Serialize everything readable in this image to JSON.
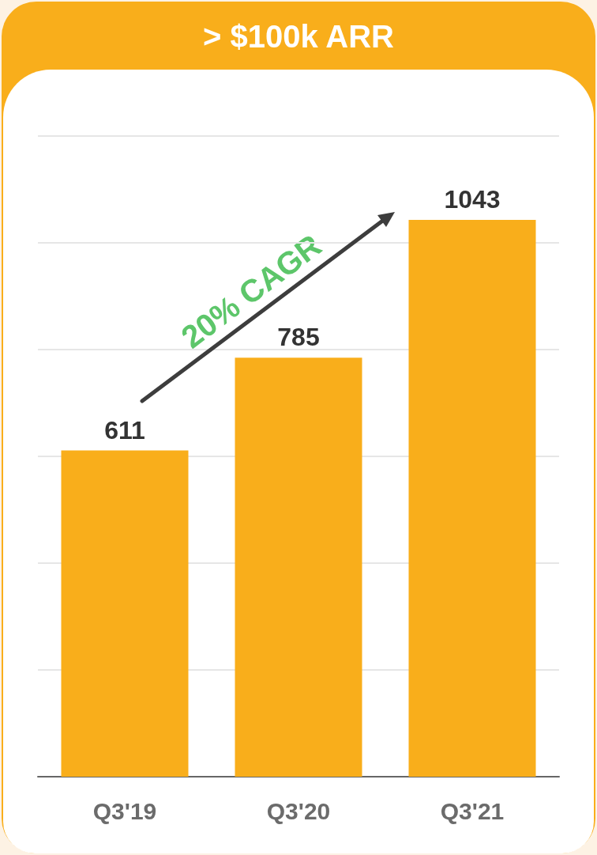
{
  "chart_data": {
    "type": "bar",
    "title": "> $100k ARR",
    "categories": [
      "Q3'19",
      "Q3'20",
      "Q3'21"
    ],
    "values": [
      611,
      785,
      1043
    ],
    "color": "#f9ae1b",
    "ylim": [
      0,
      1200
    ],
    "yticks": [
      {
        "value": 0,
        "label": null
      },
      {
        "value": 200,
        "label": null
      },
      {
        "value": 400,
        "label": null
      },
      {
        "value": 600,
        "label": null
      },
      {
        "value": 800,
        "label": null
      },
      {
        "value": 1000,
        "label": null
      },
      {
        "value": 1200,
        "label": null
      }
    ],
    "tick_labels": "x",
    "grid": "y",
    "data_labels": true,
    "annotations": [
      "20% CAGR"
    ]
  }
}
